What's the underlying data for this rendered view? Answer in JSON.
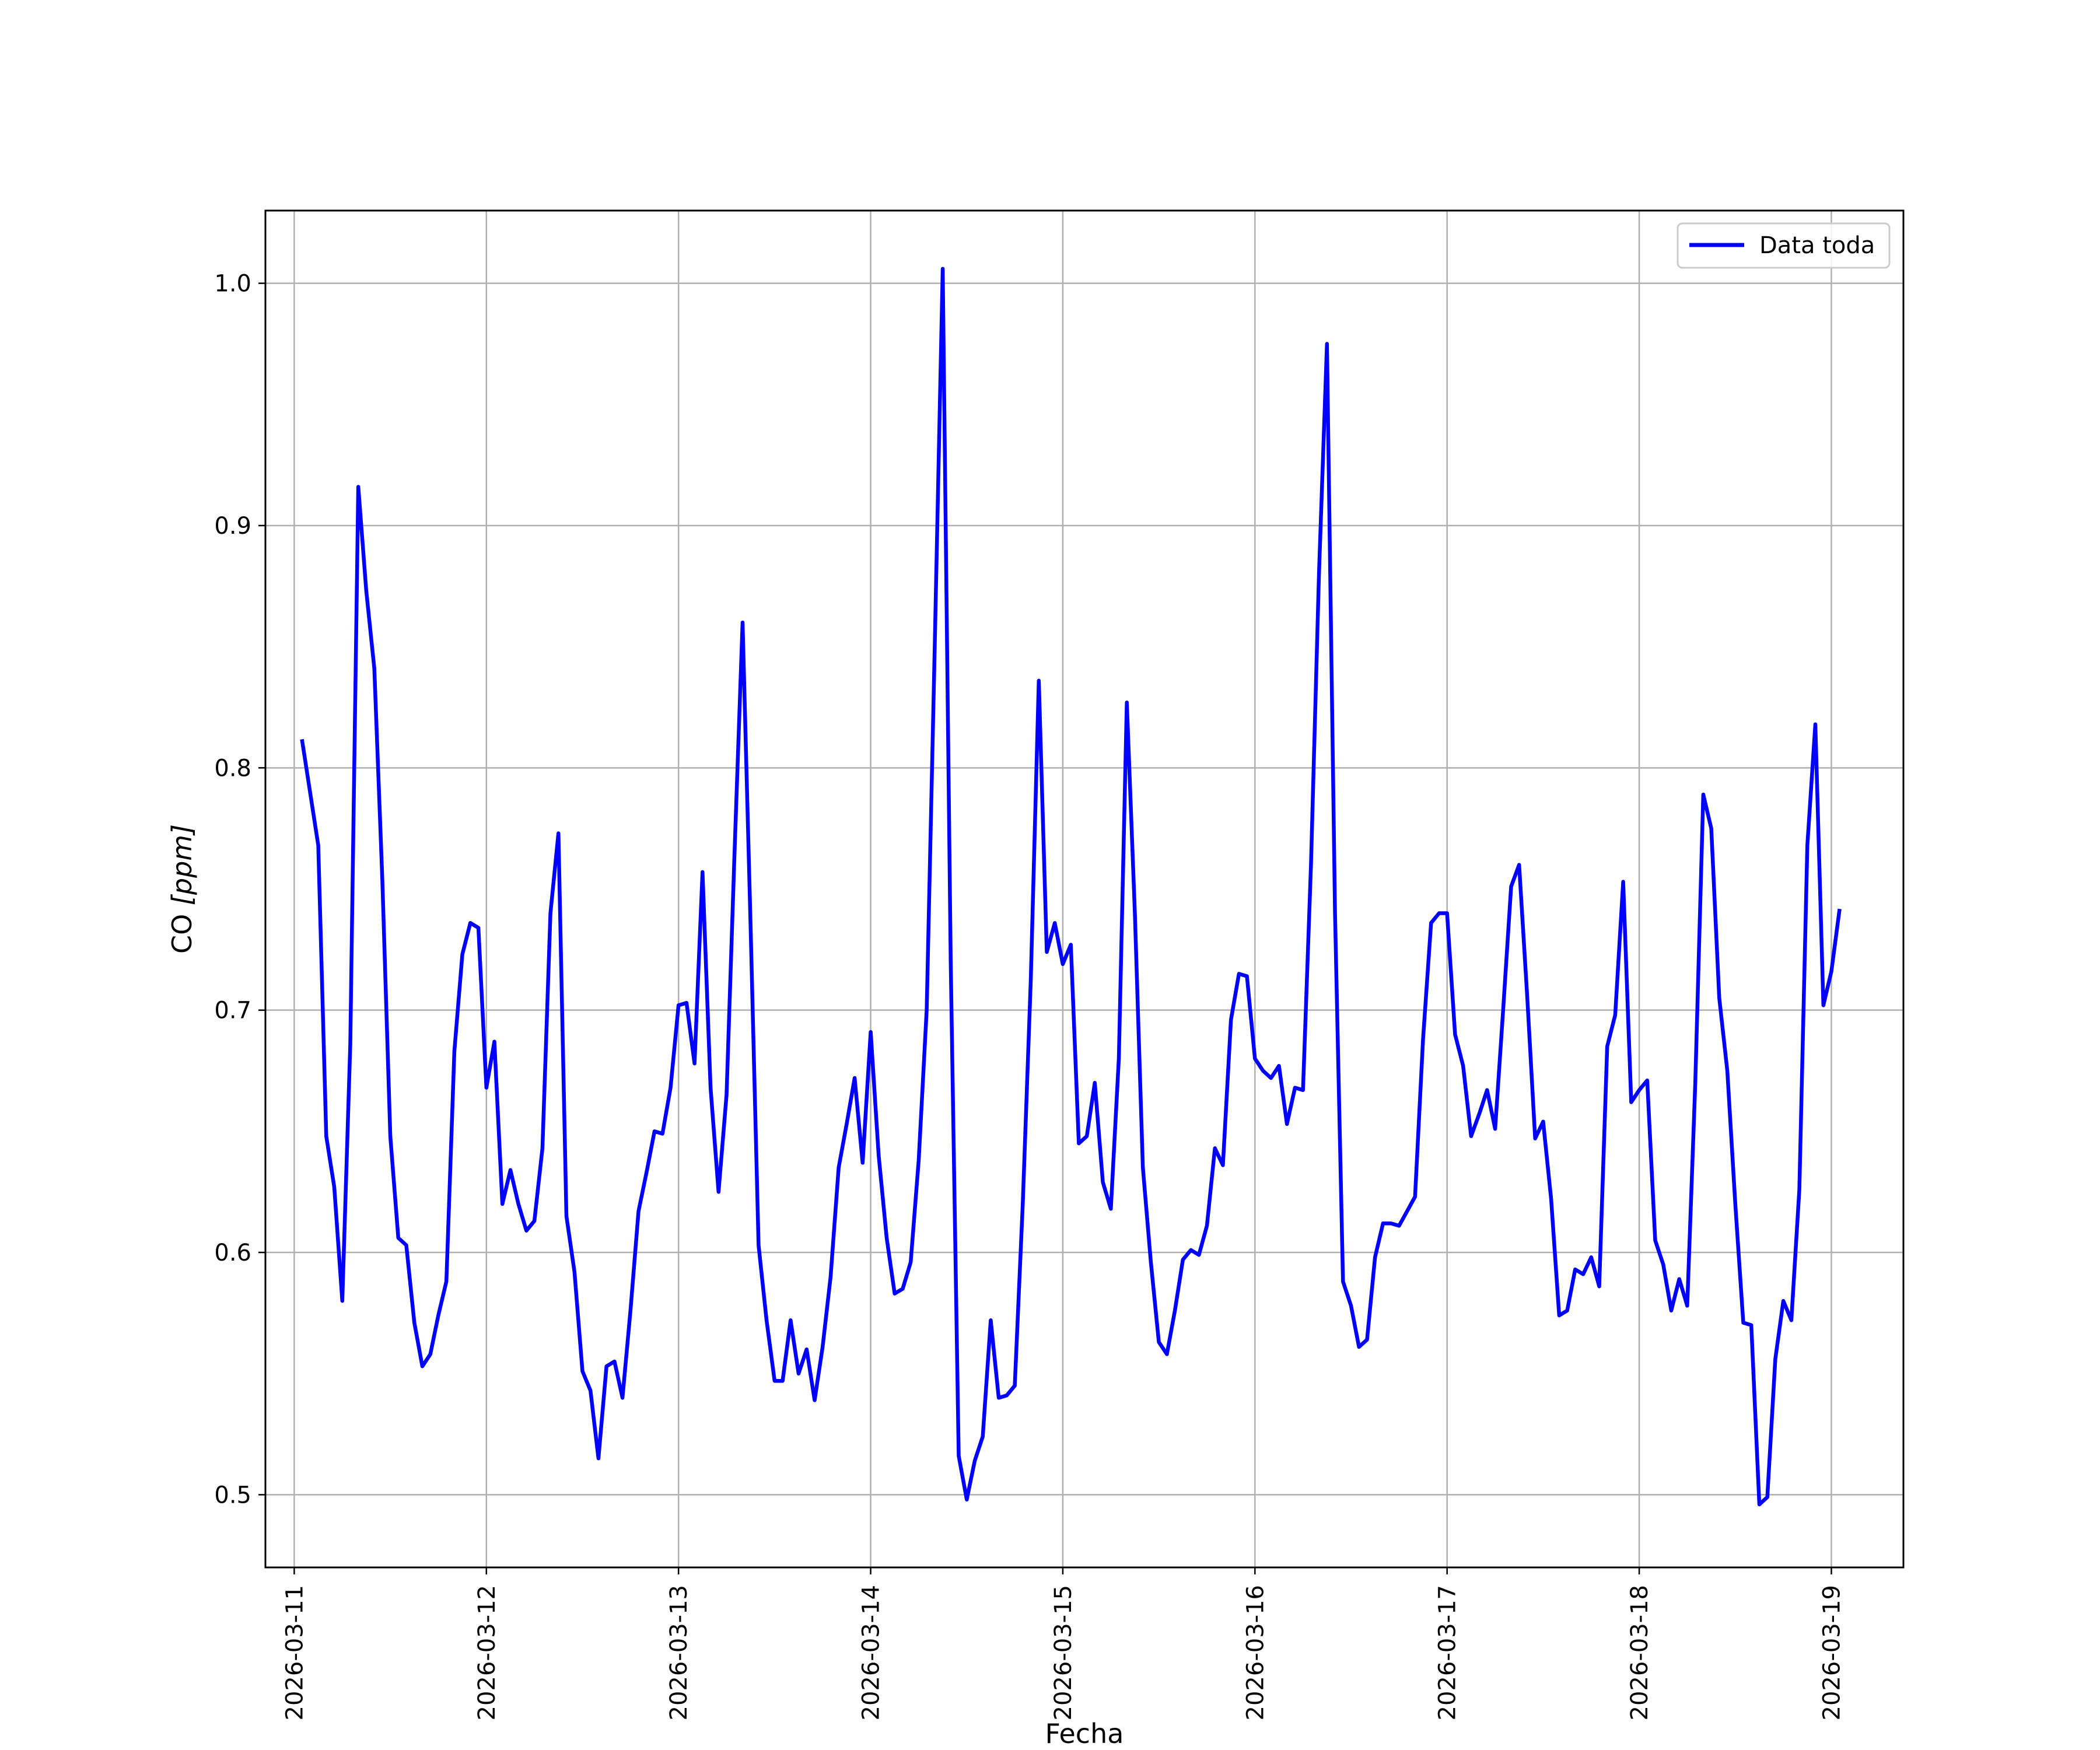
{
  "chart_data": {
    "type": "line",
    "xlabel": "Fecha",
    "ylabel_prefix": "CO ",
    "ylabel_unit": "[ppm]",
    "grid": true,
    "legend_position": "top-right",
    "x_range": [
      "2026-03-10T20:24",
      "2026-03-19T09:00"
    ],
    "ylim": [
      0.47,
      1.03
    ],
    "y_ticks": [
      0.5,
      0.6,
      0.7,
      0.8,
      0.9,
      1.0
    ],
    "y_tick_labels": [
      "0.5",
      "0.6",
      "0.7",
      "0.8",
      "0.9",
      "1.0"
    ],
    "x_ticks": [
      "2026-03-11",
      "2026-03-12",
      "2026-03-13",
      "2026-03-14",
      "2026-03-15",
      "2026-03-16",
      "2026-03-17",
      "2026-03-18",
      "2026-03-19"
    ],
    "series": [
      {
        "name": "Data toda",
        "color": "#0000ff",
        "points": [
          [
            "2026-03-11T01:00",
            0.811
          ],
          [
            "2026-03-11T03:00",
            0.768
          ],
          [
            "2026-03-11T04:00",
            0.648
          ],
          [
            "2026-03-11T05:00",
            0.627
          ],
          [
            "2026-03-11T06:00",
            0.58
          ],
          [
            "2026-03-11T07:00",
            0.686
          ],
          [
            "2026-03-11T08:00",
            0.916
          ],
          [
            "2026-03-11T09:00",
            0.873
          ],
          [
            "2026-03-11T10:00",
            0.841
          ],
          [
            "2026-03-11T11:00",
            0.754
          ],
          [
            "2026-03-11T12:00",
            0.648
          ],
          [
            "2026-03-11T13:00",
            0.606
          ],
          [
            "2026-03-11T14:00",
            0.603
          ],
          [
            "2026-03-11T15:00",
            0.571
          ],
          [
            "2026-03-11T16:00",
            0.553
          ],
          [
            "2026-03-11T17:00",
            0.558
          ],
          [
            "2026-03-11T18:00",
            0.574
          ],
          [
            "2026-03-11T19:00",
            0.588
          ],
          [
            "2026-03-11T20:00",
            0.683
          ],
          [
            "2026-03-11T21:00",
            0.723
          ],
          [
            "2026-03-11T22:00",
            0.736
          ],
          [
            "2026-03-11T23:00",
            0.734
          ],
          [
            "2026-03-12T00:00",
            0.668
          ],
          [
            "2026-03-12T01:00",
            0.687
          ],
          [
            "2026-03-12T02:00",
            0.62
          ],
          [
            "2026-03-12T03:00",
            0.634
          ],
          [
            "2026-03-12T04:00",
            0.62
          ],
          [
            "2026-03-12T05:00",
            0.609
          ],
          [
            "2026-03-12T06:00",
            0.613
          ],
          [
            "2026-03-12T07:00",
            0.643
          ],
          [
            "2026-03-12T08:00",
            0.74
          ],
          [
            "2026-03-12T09:00",
            0.773
          ],
          [
            "2026-03-12T10:00",
            0.615
          ],
          [
            "2026-03-12T11:00",
            0.592
          ],
          [
            "2026-03-12T12:00",
            0.551
          ],
          [
            "2026-03-12T13:00",
            0.543
          ],
          [
            "2026-03-12T14:00",
            0.515
          ],
          [
            "2026-03-12T15:00",
            0.553
          ],
          [
            "2026-03-12T16:00",
            0.555
          ],
          [
            "2026-03-12T17:00",
            0.54
          ],
          [
            "2026-03-12T18:00",
            0.576
          ],
          [
            "2026-03-12T19:00",
            0.617
          ],
          [
            "2026-03-12T20:00",
            0.633
          ],
          [
            "2026-03-12T21:00",
            0.65
          ],
          [
            "2026-03-12T22:00",
            0.649
          ],
          [
            "2026-03-12T23:00",
            0.668
          ],
          [
            "2026-03-13T00:00",
            0.702
          ],
          [
            "2026-03-13T01:00",
            0.703
          ],
          [
            "2026-03-13T02:00",
            0.678
          ],
          [
            "2026-03-13T03:00",
            0.757
          ],
          [
            "2026-03-13T04:00",
            0.668
          ],
          [
            "2026-03-13T05:00",
            0.625
          ],
          [
            "2026-03-13T06:00",
            0.665
          ],
          [
            "2026-03-13T07:00",
            0.765
          ],
          [
            "2026-03-13T08:00",
            0.86
          ],
          [
            "2026-03-13T09:00",
            0.735
          ],
          [
            "2026-03-13T10:00",
            0.603
          ],
          [
            "2026-03-13T11:00",
            0.572
          ],
          [
            "2026-03-13T12:00",
            0.547
          ],
          [
            "2026-03-13T13:00",
            0.547
          ],
          [
            "2026-03-13T14:00",
            0.572
          ],
          [
            "2026-03-13T15:00",
            0.55
          ],
          [
            "2026-03-13T16:00",
            0.56
          ],
          [
            "2026-03-13T17:00",
            0.539
          ],
          [
            "2026-03-13T18:00",
            0.561
          ],
          [
            "2026-03-13T19:00",
            0.59
          ],
          [
            "2026-03-13T20:00",
            0.635
          ],
          [
            "2026-03-13T21:00",
            0.653
          ],
          [
            "2026-03-13T22:00",
            0.672
          ],
          [
            "2026-03-13T23:00",
            0.637
          ],
          [
            "2026-03-14T00:00",
            0.691
          ],
          [
            "2026-03-14T01:00",
            0.64
          ],
          [
            "2026-03-14T02:00",
            0.606
          ],
          [
            "2026-03-14T03:00",
            0.583
          ],
          [
            "2026-03-14T04:00",
            0.585
          ],
          [
            "2026-03-14T05:00",
            0.596
          ],
          [
            "2026-03-14T06:00",
            0.638
          ],
          [
            "2026-03-14T07:00",
            0.7
          ],
          [
            "2026-03-14T08:00",
            0.85
          ],
          [
            "2026-03-14T09:00",
            1.006
          ],
          [
            "2026-03-14T10:00",
            0.72
          ],
          [
            "2026-03-14T11:00",
            0.516
          ],
          [
            "2026-03-14T12:00",
            0.498
          ],
          [
            "2026-03-14T13:00",
            0.514
          ],
          [
            "2026-03-14T14:00",
            0.524
          ],
          [
            "2026-03-14T15:00",
            0.572
          ],
          [
            "2026-03-14T16:00",
            0.54
          ],
          [
            "2026-03-14T17:00",
            0.541
          ],
          [
            "2026-03-14T18:00",
            0.545
          ],
          [
            "2026-03-14T19:00",
            0.62
          ],
          [
            "2026-03-14T20:00",
            0.712
          ],
          [
            "2026-03-14T21:00",
            0.836
          ],
          [
            "2026-03-14T22:00",
            0.724
          ],
          [
            "2026-03-14T23:00",
            0.736
          ],
          [
            "2026-03-15T00:00",
            0.719
          ],
          [
            "2026-03-15T01:00",
            0.727
          ],
          [
            "2026-03-15T02:00",
            0.645
          ],
          [
            "2026-03-15T03:00",
            0.648
          ],
          [
            "2026-03-15T04:00",
            0.67
          ],
          [
            "2026-03-15T05:00",
            0.629
          ],
          [
            "2026-03-15T06:00",
            0.618
          ],
          [
            "2026-03-15T07:00",
            0.68
          ],
          [
            "2026-03-15T08:00",
            0.827
          ],
          [
            "2026-03-15T09:00",
            0.74
          ],
          [
            "2026-03-15T10:00",
            0.635
          ],
          [
            "2026-03-15T11:00",
            0.596
          ],
          [
            "2026-03-15T12:00",
            0.563
          ],
          [
            "2026-03-15T13:00",
            0.558
          ],
          [
            "2026-03-15T14:00",
            0.576
          ],
          [
            "2026-03-15T15:00",
            0.597
          ],
          [
            "2026-03-15T16:00",
            0.601
          ],
          [
            "2026-03-15T17:00",
            0.599
          ],
          [
            "2026-03-15T18:00",
            0.611
          ],
          [
            "2026-03-15T19:00",
            0.643
          ],
          [
            "2026-03-15T20:00",
            0.636
          ],
          [
            "2026-03-15T21:00",
            0.696
          ],
          [
            "2026-03-15T22:00",
            0.715
          ],
          [
            "2026-03-15T23:00",
            0.714
          ],
          [
            "2026-03-16T00:00",
            0.68
          ],
          [
            "2026-03-16T01:00",
            0.675
          ],
          [
            "2026-03-16T02:00",
            0.672
          ],
          [
            "2026-03-16T03:00",
            0.677
          ],
          [
            "2026-03-16T04:00",
            0.653
          ],
          [
            "2026-03-16T05:00",
            0.668
          ],
          [
            "2026-03-16T06:00",
            0.667
          ],
          [
            "2026-03-16T07:00",
            0.76
          ],
          [
            "2026-03-16T08:00",
            0.88
          ],
          [
            "2026-03-16T09:00",
            0.975
          ],
          [
            "2026-03-16T10:00",
            0.74
          ],
          [
            "2026-03-16T11:00",
            0.588
          ],
          [
            "2026-03-16T12:00",
            0.578
          ],
          [
            "2026-03-16T13:00",
            0.561
          ],
          [
            "2026-03-16T14:00",
            0.564
          ],
          [
            "2026-03-16T15:00",
            0.598
          ],
          [
            "2026-03-16T16:00",
            0.612
          ],
          [
            "2026-03-16T17:00",
            0.612
          ],
          [
            "2026-03-16T18:00",
            0.611
          ],
          [
            "2026-03-16T19:00",
            0.617
          ],
          [
            "2026-03-16T20:00",
            0.623
          ],
          [
            "2026-03-16T21:00",
            0.688
          ],
          [
            "2026-03-16T22:00",
            0.736
          ],
          [
            "2026-03-16T23:00",
            0.74
          ],
          [
            "2026-03-17T00:00",
            0.74
          ],
          [
            "2026-03-17T01:00",
            0.69
          ],
          [
            "2026-03-17T02:00",
            0.677
          ],
          [
            "2026-03-17T03:00",
            0.648
          ],
          [
            "2026-03-17T04:00",
            0.657
          ],
          [
            "2026-03-17T05:00",
            0.667
          ],
          [
            "2026-03-17T06:00",
            0.651
          ],
          [
            "2026-03-17T07:00",
            0.7
          ],
          [
            "2026-03-17T08:00",
            0.751
          ],
          [
            "2026-03-17T09:00",
            0.76
          ],
          [
            "2026-03-17T10:00",
            0.706
          ],
          [
            "2026-03-17T11:00",
            0.647
          ],
          [
            "2026-03-17T12:00",
            0.654
          ],
          [
            "2026-03-17T13:00",
            0.622
          ],
          [
            "2026-03-17T14:00",
            0.574
          ],
          [
            "2026-03-17T15:00",
            0.576
          ],
          [
            "2026-03-17T16:00",
            0.593
          ],
          [
            "2026-03-17T17:00",
            0.591
          ],
          [
            "2026-03-17T18:00",
            0.598
          ],
          [
            "2026-03-17T19:00",
            0.586
          ],
          [
            "2026-03-17T20:00",
            0.685
          ],
          [
            "2026-03-17T21:00",
            0.698
          ],
          [
            "2026-03-17T22:00",
            0.753
          ],
          [
            "2026-03-17T23:00",
            0.662
          ],
          [
            "2026-03-18T00:00",
            0.667
          ],
          [
            "2026-03-18T01:00",
            0.671
          ],
          [
            "2026-03-18T02:00",
            0.605
          ],
          [
            "2026-03-18T03:00",
            0.595
          ],
          [
            "2026-03-18T04:00",
            0.576
          ],
          [
            "2026-03-18T05:00",
            0.589
          ],
          [
            "2026-03-18T06:00",
            0.578
          ],
          [
            "2026-03-18T07:00",
            0.67
          ],
          [
            "2026-03-18T08:00",
            0.789
          ],
          [
            "2026-03-18T09:00",
            0.775
          ],
          [
            "2026-03-18T10:00",
            0.705
          ],
          [
            "2026-03-18T11:00",
            0.675
          ],
          [
            "2026-03-18T12:00",
            0.62
          ],
          [
            "2026-03-18T13:00",
            0.571
          ],
          [
            "2026-03-18T14:00",
            0.57
          ],
          [
            "2026-03-18T15:00",
            0.496
          ],
          [
            "2026-03-18T16:00",
            0.499
          ],
          [
            "2026-03-18T17:00",
            0.556
          ],
          [
            "2026-03-18T18:00",
            0.58
          ],
          [
            "2026-03-18T19:00",
            0.572
          ],
          [
            "2026-03-18T20:00",
            0.626
          ],
          [
            "2026-03-18T21:00",
            0.768
          ],
          [
            "2026-03-18T22:00",
            0.818
          ],
          [
            "2026-03-18T23:00",
            0.702
          ],
          [
            "2026-03-19T00:00",
            0.716
          ],
          [
            "2026-03-19T01:00",
            0.741
          ]
        ]
      }
    ]
  }
}
